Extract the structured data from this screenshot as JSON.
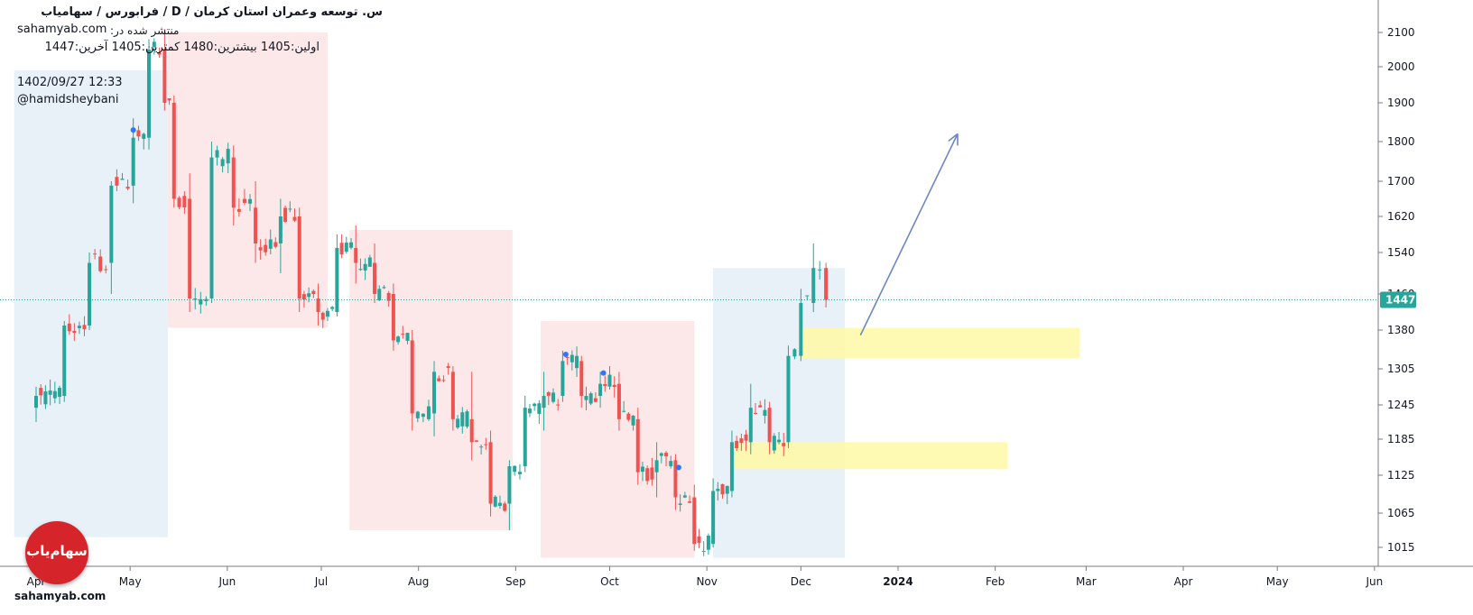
{
  "header": {
    "title_line": "س. توسعه وعمران استان کرمان /  D  /  فرابورس / سهامیاب",
    "published_at": "منتشر شده در:",
    "site": "sahamyab.com",
    "ohlc_line": "اولین:1405  بیشترین:1480  کمترین:1405  آخرین:1447",
    "timestamp": "1402/09/27 12:33",
    "author": "@hamidsheybani"
  },
  "watermark": {
    "logo_text": "سهام‌یاب",
    "site": "sahamyab.com"
  },
  "colors": {
    "up": "#26a69a",
    "down": "#ef5350",
    "price_line": "#26a69a",
    "arrow": "#6d87c2",
    "zone": "#fff9a6",
    "box_red": "#fce8e8",
    "box_blue": "#e8f0f8"
  },
  "chart_data": {
    "type": "candlestick",
    "symbol": "س. توسعه وعمران استان کرمان",
    "timeframe": "D",
    "last_price": 1447,
    "last_price_label": "1447",
    "y_ticks": [
      "1015",
      "1065",
      "1125",
      "1185",
      "1245",
      "1305",
      "1380",
      "1460",
      "1540",
      "1620",
      "1700",
      "1800",
      "1900",
      "2000",
      "2100"
    ],
    "x_ticks": [
      "Apr",
      "May",
      "Jun",
      "Jul",
      "Aug",
      "Sep",
      "Oct",
      "Nov",
      "Dec",
      "2024",
      "Feb",
      "Mar",
      "Apr",
      "May",
      "Jun"
    ],
    "series": [
      {
        "date": "2023-04-01",
        "open": 1240,
        "high": 1275,
        "low": 1215,
        "close": 1260
      },
      {
        "date": "2023-04-10",
        "open": 1260,
        "high": 1400,
        "low": 1250,
        "close": 1390
      },
      {
        "date": "2023-04-18",
        "open": 1390,
        "high": 1540,
        "low": 1380,
        "close": 1520
      },
      {
        "date": "2023-04-25",
        "open": 1520,
        "high": 1700,
        "low": 1460,
        "close": 1690
      },
      {
        "date": "2023-05-02",
        "open": 1690,
        "high": 1860,
        "low": 1650,
        "close": 1810
      },
      {
        "date": "2023-05-07",
        "open": 1810,
        "high": 2080,
        "low": 1780,
        "close": 2050
      },
      {
        "date": "2023-05-12",
        "open": 2050,
        "high": 2110,
        "low": 1880,
        "close": 1900
      },
      {
        "date": "2023-05-15",
        "open": 1900,
        "high": 1920,
        "low": 1640,
        "close": 1660
      },
      {
        "date": "2023-05-20",
        "open": 1660,
        "high": 1720,
        "low": 1420,
        "close": 1450
      },
      {
        "date": "2023-05-27",
        "open": 1450,
        "high": 1800,
        "low": 1440,
        "close": 1760
      },
      {
        "date": "2023-06-03",
        "open": 1760,
        "high": 1790,
        "low": 1600,
        "close": 1640
      },
      {
        "date": "2023-06-10",
        "open": 1640,
        "high": 1700,
        "low": 1520,
        "close": 1560
      },
      {
        "date": "2023-06-18",
        "open": 1560,
        "high": 1660,
        "low": 1500,
        "close": 1620
      },
      {
        "date": "2023-06-24",
        "open": 1620,
        "high": 1640,
        "low": 1420,
        "close": 1450
      },
      {
        "date": "2023-06-30",
        "open": 1450,
        "high": 1480,
        "low": 1390,
        "close": 1420
      },
      {
        "date": "2023-07-06",
        "open": 1420,
        "high": 1580,
        "low": 1410,
        "close": 1550
      },
      {
        "date": "2023-07-12",
        "open": 1550,
        "high": 1600,
        "low": 1480,
        "close": 1520
      },
      {
        "date": "2023-07-18",
        "open": 1520,
        "high": 1560,
        "low": 1440,
        "close": 1460
      },
      {
        "date": "2023-07-24",
        "open": 1460,
        "high": 1480,
        "low": 1340,
        "close": 1360
      },
      {
        "date": "2023-07-30",
        "open": 1360,
        "high": 1380,
        "low": 1200,
        "close": 1230
      },
      {
        "date": "2023-08-06",
        "open": 1230,
        "high": 1320,
        "low": 1190,
        "close": 1300
      },
      {
        "date": "2023-08-12",
        "open": 1300,
        "high": 1310,
        "low": 1200,
        "close": 1220
      },
      {
        "date": "2023-08-18",
        "open": 1220,
        "high": 1300,
        "low": 1150,
        "close": 1180
      },
      {
        "date": "2023-08-24",
        "open": 1180,
        "high": 1200,
        "low": 1060,
        "close": 1080
      },
      {
        "date": "2023-08-30",
        "open": 1080,
        "high": 1150,
        "low": 1040,
        "close": 1140
      },
      {
        "date": "2023-09-04",
        "open": 1140,
        "high": 1260,
        "low": 1130,
        "close": 1240
      },
      {
        "date": "2023-09-10",
        "open": 1240,
        "high": 1300,
        "low": 1200,
        "close": 1260
      },
      {
        "date": "2023-09-16",
        "open": 1260,
        "high": 1340,
        "low": 1250,
        "close": 1320
      },
      {
        "date": "2023-09-22",
        "open": 1320,
        "high": 1330,
        "low": 1240,
        "close": 1260
      },
      {
        "date": "2023-09-28",
        "open": 1260,
        "high": 1300,
        "low": 1240,
        "close": 1280
      },
      {
        "date": "2023-10-04",
        "open": 1280,
        "high": 1300,
        "low": 1200,
        "close": 1220
      },
      {
        "date": "2023-10-10",
        "open": 1220,
        "high": 1240,
        "low": 1110,
        "close": 1130
      },
      {
        "date": "2023-10-16",
        "open": 1130,
        "high": 1180,
        "low": 1090,
        "close": 1150
      },
      {
        "date": "2023-10-22",
        "open": 1150,
        "high": 1160,
        "low": 1070,
        "close": 1090
      },
      {
        "date": "2023-10-28",
        "open": 1090,
        "high": 1110,
        "low": 1010,
        "close": 1020
      },
      {
        "date": "2023-11-03",
        "open": 1020,
        "high": 1120,
        "low": 1015,
        "close": 1100
      },
      {
        "date": "2023-11-09",
        "open": 1100,
        "high": 1200,
        "low": 1090,
        "close": 1180
      },
      {
        "date": "2023-11-15",
        "open": 1180,
        "high": 1280,
        "low": 1160,
        "close": 1240
      },
      {
        "date": "2023-11-21",
        "open": 1240,
        "high": 1250,
        "low": 1160,
        "close": 1180
      },
      {
        "date": "2023-11-27",
        "open": 1180,
        "high": 1350,
        "low": 1170,
        "close": 1330
      },
      {
        "date": "2023-12-01",
        "open": 1330,
        "high": 1470,
        "low": 1320,
        "close": 1440
      },
      {
        "date": "2023-12-05",
        "open": 1440,
        "high": 1560,
        "low": 1420,
        "close": 1510
      },
      {
        "date": "2023-12-09",
        "open": 1510,
        "high": 1520,
        "low": 1430,
        "close": 1447
      }
    ],
    "annotations": {
      "boxes": [
        {
          "color": "blue",
          "from": "2023-03-25",
          "to": "2023-05-13",
          "low": 1030,
          "high": 1990
        },
        {
          "color": "red",
          "from": "2023-05-13",
          "to": "2023-07-03",
          "low": 1385,
          "high": 2100
        },
        {
          "color": "red",
          "from": "2023-07-10",
          "to": "2023-08-31",
          "low": 1040,
          "high": 1590
        },
        {
          "color": "red",
          "from": "2023-09-09",
          "to": "2023-10-28",
          "low": 1000,
          "high": 1400
        },
        {
          "color": "blue",
          "from": "2023-11-03",
          "to": "2023-12-15",
          "low": 1000,
          "high": 1510
        }
      ],
      "zones": [
        {
          "from": "2023-12-01",
          "to": "2024-02-28",
          "low": 1325,
          "high": 1385
        },
        {
          "from": "2023-11-09",
          "to": "2024-02-05",
          "low": 1135,
          "high": 1180
        }
      ],
      "arrow": {
        "from_date": "2023-12-20",
        "from_value": 1370,
        "to_date": "2024-01-20",
        "to_value": 1820
      },
      "markers": [
        {
          "date": "2023-05-02",
          "value": 1830
        },
        {
          "date": "2023-09-17",
          "value": 1333
        },
        {
          "date": "2023-09-29",
          "value": 1298
        },
        {
          "date": "2023-10-23",
          "value": 1138
        }
      ]
    }
  }
}
